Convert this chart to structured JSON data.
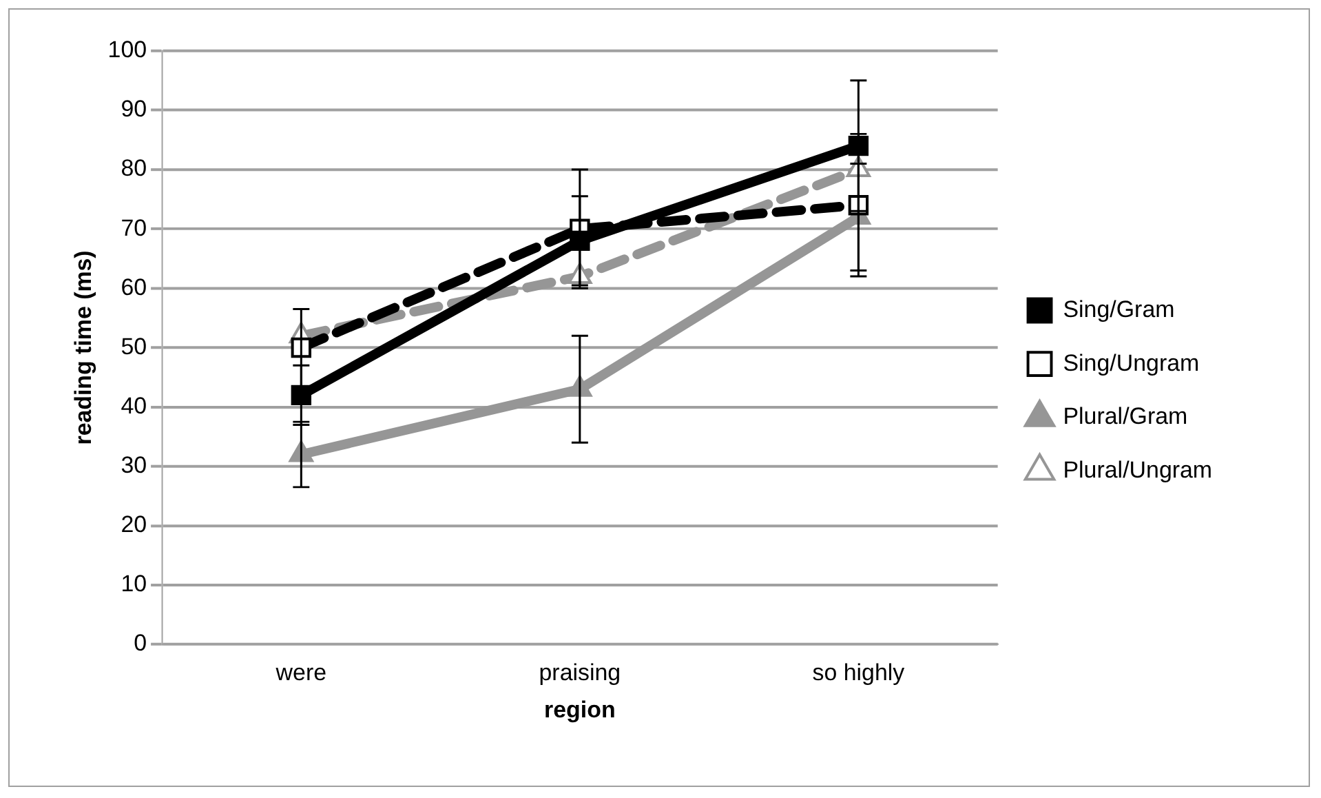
{
  "chart_data": {
    "type": "line",
    "xlabel": "region",
    "ylabel": "reading time (ms)",
    "categories": [
      "were",
      "praising",
      "so highly"
    ],
    "ylim": [
      0,
      100
    ],
    "yticks": [
      0,
      10,
      20,
      30,
      40,
      50,
      60,
      70,
      80,
      90,
      100
    ],
    "grid": "y",
    "legend": "right",
    "series": [
      {
        "name": "Sing/Gram",
        "color": "#000000",
        "marker": "square",
        "line_style": "solid",
        "values": [
          42,
          68,
          84
        ],
        "errors": [
          5,
          7.5,
          11
        ]
      },
      {
        "name": "Sing/Ungram",
        "color": "#000000",
        "marker": "square",
        "line_style": "dashed",
        "values": [
          50,
          70,
          74
        ],
        "errors": [
          6.5,
          10,
          12
        ]
      },
      {
        "name": "Plural/Gram",
        "color": "#969696",
        "marker": "triangle",
        "line_style": "solid",
        "values": [
          32,
          43,
          72
        ],
        "errors": [
          5.5,
          9,
          9
        ]
      },
      {
        "name": "Plural/Ungram",
        "color": "#969696",
        "marker": "triangle",
        "line_style": "dashed",
        "values": [
          52,
          62,
          80
        ]
      }
    ]
  }
}
